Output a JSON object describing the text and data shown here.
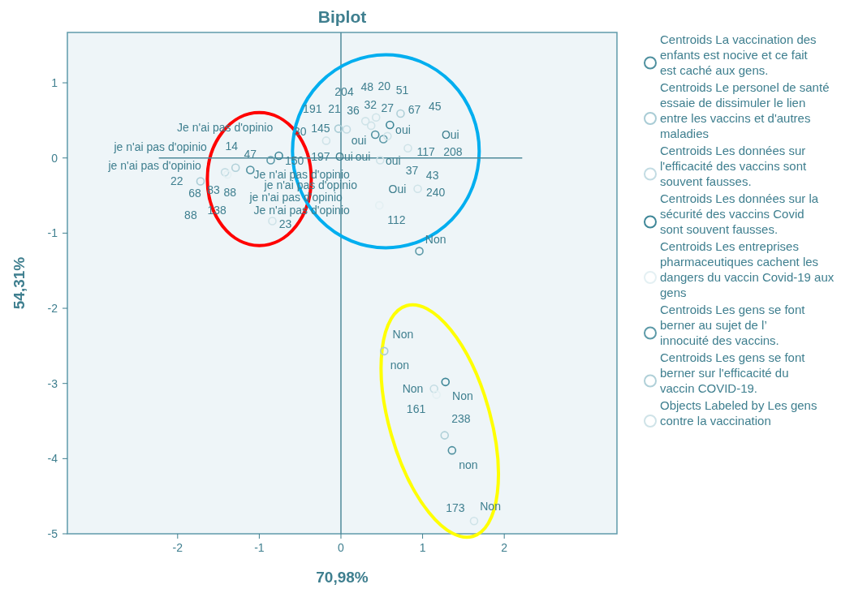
{
  "chart_data": {
    "type": "scatter",
    "title": "Biplot",
    "xlabel": "70,98%",
    "ylabel": "54,31%",
    "xlim": [
      -3.35,
      3.38
    ],
    "ylim": [
      -5,
      1.67
    ],
    "xticks": [
      -2,
      -1,
      0,
      1,
      2
    ],
    "yticks": [
      -5,
      -4,
      -3,
      -2,
      -1,
      0,
      1
    ],
    "grid": false,
    "legend": "right",
    "marker": "circle",
    "ref_lines": [
      {
        "axis": "x",
        "value": 0,
        "color": "#4f8a9a"
      }
    ],
    "series": [
      {
        "type": "line",
        "marker": "none",
        "color": "#4f8a9a",
        "x": [
          -2.23,
          2.22
        ],
        "values": [
          0,
          0
        ]
      },
      {
        "name": "Centroids La vaccination des enfants est nocive et ce fait est caché aux gens.",
        "color": "#4f909f",
        "x": [
          -1.11,
          0.42,
          1.36
        ],
        "values": [
          -0.16,
          0.31,
          -3.89
        ]
      },
      {
        "name": "Centroids Le personel de santé essaie de dissimuler le lien entre les vaccins et d'autres maladies",
        "color": "#a9ccd5",
        "x": [
          -1.72,
          -0.03,
          0.53
        ],
        "values": [
          -0.31,
          0.39,
          -2.57
        ]
      },
      {
        "name": "Centroids Les données sur l'efficacité des vaccins sont souvent fausses.",
        "color": "#c3dce3",
        "x": [
          -1.42,
          0.07,
          1.14
        ],
        "values": [
          -0.19,
          0.38,
          -3.07
        ]
      },
      {
        "name": "Centroids Les données sur la sécurité des vaccins Covid sont souvent fausses.",
        "color": "#3f8798",
        "x": [
          -0.76,
          0.6,
          1.28
        ],
        "values": [
          0.03,
          0.44,
          -2.98
        ]
      },
      {
        "name": "Centroids Les entreprises pharmaceutiques cachent les dangers du vaccin Covid-19 aux gens",
        "color": "#e4f0f3",
        "x": [
          -1.39,
          0.47,
          1.17
        ],
        "values": [
          -0.22,
          -0.63,
          -3.15
        ]
      },
      {
        "name": "Centroids Les gens se font berner au sujet de l’ innocuité des vaccins.",
        "color": "#5d9aa8",
        "x": [
          -0.86,
          0.96,
          0.52
        ],
        "values": [
          -0.03,
          -1.24,
          0.25
        ]
      },
      {
        "name": "Centroids Les gens se font berner sur l'efficacité du vaccin COVID-19.",
        "color": "#b0d0d8",
        "x": [
          -1.29,
          0.73,
          1.27
        ],
        "values": [
          -0.13,
          0.59,
          -3.69
        ]
      },
      {
        "name": "Objects Labeled by Les gens contre la vaccination",
        "color": "#cfe3e8",
        "x": [
          -0.84,
          -0.18,
          0.3,
          0.43,
          0.37,
          0.57,
          0.82,
          0.48,
          0.94,
          1.63
        ],
        "values": [
          -0.84,
          0.23,
          0.49,
          0.54,
          0.43,
          0.29,
          0.13,
          -0.03,
          -0.41,
          -4.83
        ]
      }
    ],
    "annotations": [
      "Je n'ai pas d'opinio",
      "je n'ai pas d'opinio",
      "14",
      "47",
      "je n'ai pas d'opinio",
      "22",
      "68",
      "83",
      "88",
      "88",
      "138",
      "Je n'ai pas d'opinio",
      "je n'ai pas d'opinio",
      "je n'ai pas d'opinio",
      "Je n'ai pas d'opinio",
      "23",
      "150",
      "30",
      "145",
      "191",
      "21",
      "204",
      "48",
      "20",
      "51",
      "36",
      "32",
      "27",
      "67",
      "45",
      "oui",
      "oui",
      "Oui",
      "197",
      "Oui",
      "oui",
      "oui",
      "117",
      "208",
      "37",
      "43",
      "Oui",
      "240",
      "112",
      "Non",
      "Non",
      "non",
      "Non",
      "161",
      "Non",
      "238",
      "non",
      "173",
      "Non"
    ]
  }
}
